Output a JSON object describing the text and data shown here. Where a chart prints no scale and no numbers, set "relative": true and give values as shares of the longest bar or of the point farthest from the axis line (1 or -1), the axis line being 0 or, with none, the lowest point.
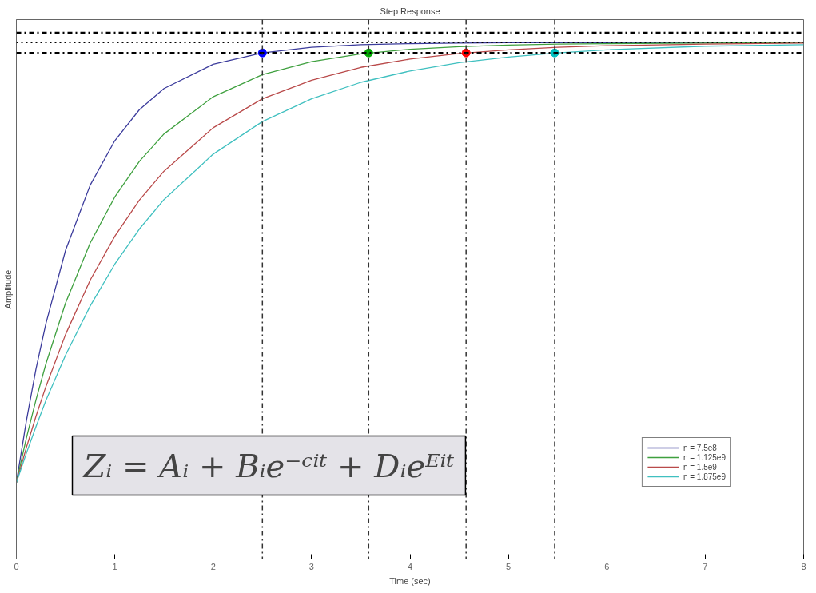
{
  "chart_data": {
    "type": "line",
    "title": "Step Response",
    "xlabel": "Time (sec)",
    "ylabel": "Amplitude",
    "relative": true,
    "xlim": [
      0,
      8
    ],
    "xticks": [
      0,
      1,
      2,
      3,
      4,
      5,
      6,
      7,
      8
    ],
    "grid": false,
    "legend": "bottom right",
    "marker": "none",
    "line_style": "solid",
    "series": [
      {
        "name": "n = 7.5e8",
        "color": "#3c3c9c",
        "x": [
          0,
          0.1,
          0.2,
          0.3,
          0.5,
          0.75,
          1,
          1.25,
          1.5,
          2,
          2.5,
          3,
          3.5,
          4,
          4.5,
          5,
          5.5,
          6,
          7,
          8
        ],
        "values": [
          0.148,
          0.266,
          0.369,
          0.456,
          0.598,
          0.724,
          0.81,
          0.87,
          0.911,
          0.958,
          0.98,
          0.991,
          0.996,
          0.998,
          0.999,
          1.0,
          1.0,
          1.0,
          1.0,
          1.0
        ]
      },
      {
        "name": "n = 1.125e9",
        "color": "#3fa03f",
        "x": [
          0,
          0.1,
          0.2,
          0.3,
          0.5,
          0.75,
          1,
          1.25,
          1.5,
          2,
          2.5,
          3,
          3.5,
          4,
          4.5,
          5,
          5.5,
          6,
          7,
          8
        ],
        "values": [
          0.148,
          0.233,
          0.309,
          0.378,
          0.496,
          0.612,
          0.701,
          0.77,
          0.823,
          0.895,
          0.938,
          0.963,
          0.978,
          0.987,
          0.992,
          0.995,
          0.997,
          0.998,
          0.999,
          1.0
        ]
      },
      {
        "name": "n = 1.5e9",
        "color": "#b94a4a",
        "x": [
          0,
          0.1,
          0.2,
          0.3,
          0.5,
          0.75,
          1,
          1.25,
          1.5,
          2,
          2.5,
          3,
          3.5,
          4,
          4.5,
          5,
          5.5,
          6,
          7,
          8
        ],
        "values": [
          0.148,
          0.215,
          0.277,
          0.334,
          0.435,
          0.54,
          0.625,
          0.695,
          0.751,
          0.835,
          0.891,
          0.927,
          0.952,
          0.968,
          0.979,
          0.986,
          0.991,
          0.994,
          0.997,
          0.999
        ]
      },
      {
        "name": "n = 1.875e9",
        "color": "#40c0c0",
        "x": [
          0,
          0.1,
          0.2,
          0.3,
          0.5,
          0.75,
          1,
          1.25,
          1.5,
          2,
          2.5,
          3,
          3.5,
          4,
          4.5,
          5,
          5.5,
          6,
          7,
          8
        ],
        "values": [
          0.148,
          0.204,
          0.257,
          0.307,
          0.395,
          0.49,
          0.571,
          0.639,
          0.696,
          0.784,
          0.847,
          0.891,
          0.923,
          0.945,
          0.961,
          0.972,
          0.98,
          0.986,
          0.993,
          0.996
        ]
      },
      {
        "type": "scatter",
        "marker": "circle",
        "x": [
          2.5,
          3.58,
          4.57,
          5.47
        ],
        "values": [
          0.98,
          0.98,
          0.98,
          0.98
        ],
        "colors": [
          "#0000ff",
          "#00aa00",
          "#ff0000",
          "#00bfbf"
        ]
      }
    ],
    "ref_lines": [
      {
        "axis": "y",
        "value": 1.019,
        "label": null,
        "line_style": "dashdot",
        "color": "#000000"
      },
      {
        "axis": "y",
        "value": 1.0,
        "label": null,
        "line_style": "dotted",
        "color": "#000000"
      },
      {
        "axis": "y",
        "value": 0.98,
        "label": null,
        "line_style": "dashdot",
        "color": "#000000"
      },
      {
        "axis": "x",
        "value": 2.5,
        "label": null,
        "line_style": "dashdot",
        "color": "#333333"
      },
      {
        "axis": "x",
        "value": 3.58,
        "label": null,
        "line_style": "dashdot",
        "color": "#333333"
      },
      {
        "axis": "x",
        "value": 4.57,
        "label": null,
        "line_style": "dashdot",
        "color": "#333333"
      },
      {
        "axis": "x",
        "value": 5.47,
        "label": null,
        "line_style": "dashdot",
        "color": "#333333"
      }
    ],
    "annotations": [
      "Zᵢ = Aᵢ + Bᵢe⁻ᶜⁱᵗ + Dᵢeᴱⁱᵗ"
    ]
  }
}
